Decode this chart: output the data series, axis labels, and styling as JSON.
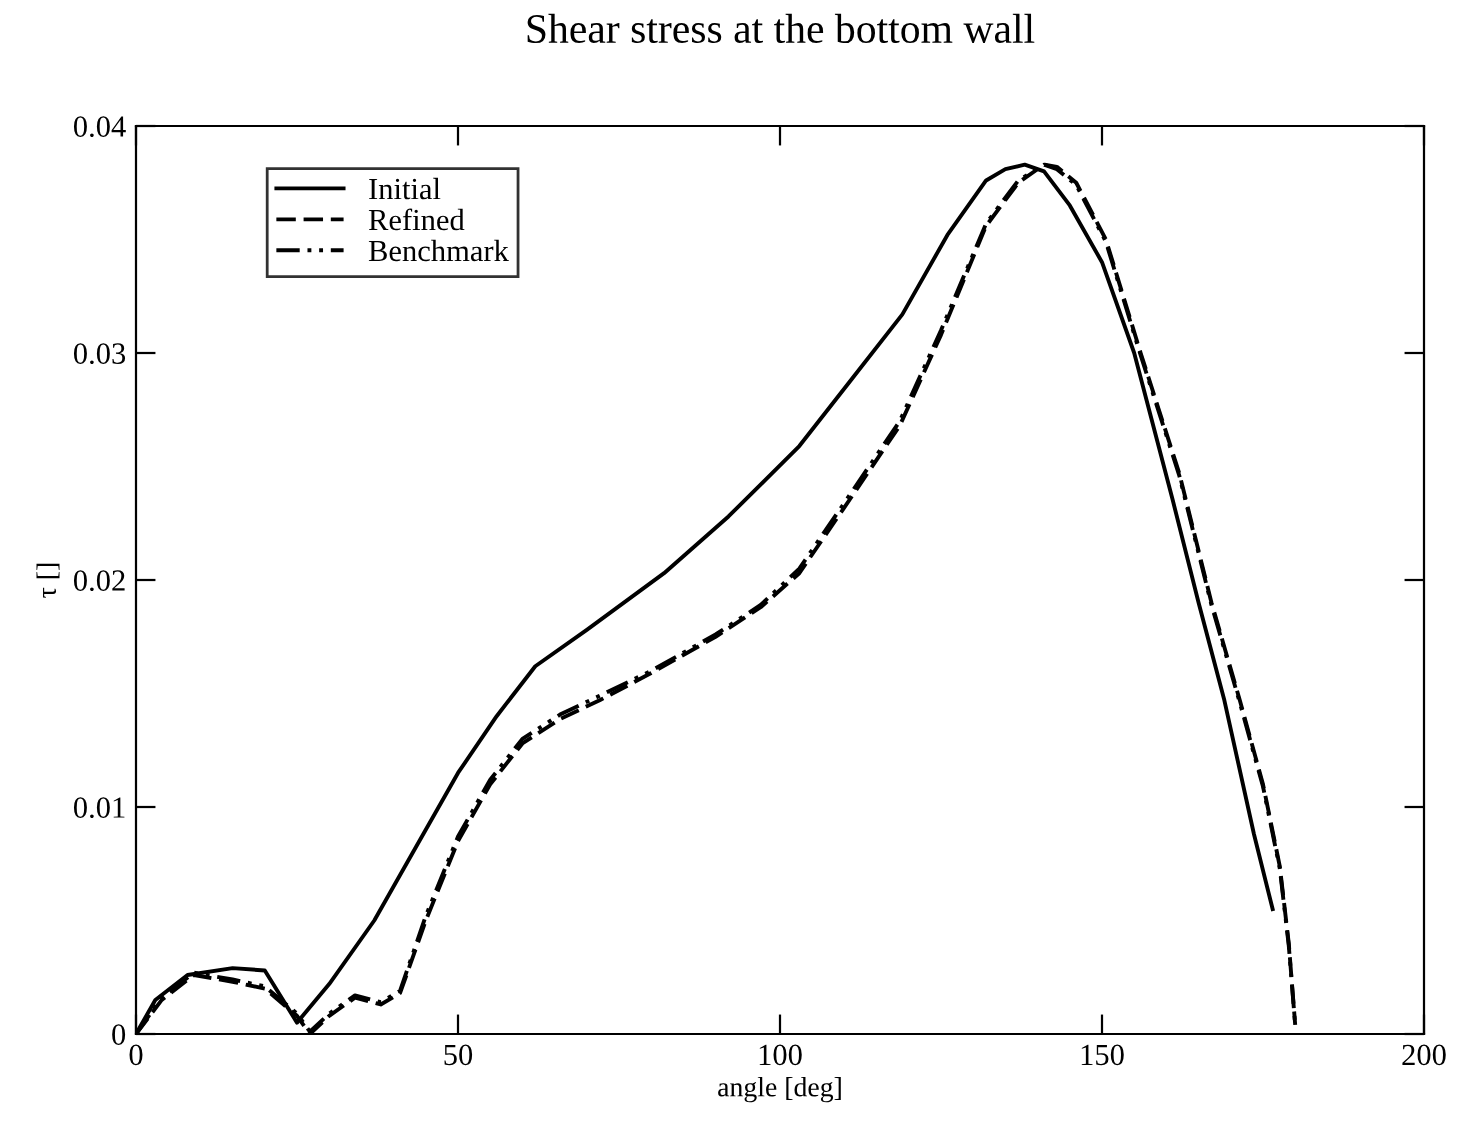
{
  "chart_data": {
    "type": "line",
    "title": "Shear stress at the bottom wall",
    "xlabel": "angle [deg]",
    "ylabel": "τ []",
    "xlim": [
      0,
      200
    ],
    "xticks": [
      0,
      50,
      100,
      150,
      200
    ],
    "ylim": [
      0,
      0.04
    ],
    "yticks": [
      0,
      0.01,
      0.02,
      0.03,
      0.04
    ],
    "grid": false,
    "legend": "top left",
    "marker": "none",
    "series": [
      {
        "name": "Initial",
        "color": "#000000",
        "line_style": "solid",
        "x": [
          0,
          3,
          8,
          15,
          20,
          25,
          30,
          37,
          44,
          50,
          56,
          62,
          70,
          82,
          92,
          103,
          111,
          119,
          126,
          132,
          135,
          138,
          141,
          145,
          150,
          155,
          161,
          165,
          169,
          173.6,
          176.5
        ],
        "values": [
          0,
          0.0015,
          0.0026,
          0.0029,
          0.0028,
          0.0005,
          0.0022,
          0.005,
          0.0085,
          0.0115,
          0.014,
          0.0162,
          0.0178,
          0.0203,
          0.0228,
          0.0259,
          0.0288,
          0.0317,
          0.0352,
          0.0376,
          0.0381,
          0.0383,
          0.038,
          0.0365,
          0.034,
          0.03,
          0.0235,
          0.019,
          0.0147,
          0.0088,
          0.0055
        ]
      },
      {
        "name": "Refined",
        "color": "#000000",
        "line_style": "dashed",
        "x": [
          0,
          4,
          9,
          15,
          20,
          25,
          27,
          30,
          34,
          38,
          41,
          45,
          50,
          55,
          60,
          66,
          72,
          80,
          90,
          97,
          103,
          110,
          118.6,
          125,
          132,
          137,
          141,
          143,
          146,
          150.6,
          156,
          162,
          167,
          171.4,
          175,
          177.6,
          179,
          180
        ],
        "values": [
          0,
          0.0015,
          0.0026,
          0.0023,
          0.002,
          0.0008,
          0.0,
          0.0008,
          0.0016,
          0.0013,
          0.0018,
          0.005,
          0.0085,
          0.011,
          0.0128,
          0.0139,
          0.0147,
          0.0159,
          0.0175,
          0.0188,
          0.0203,
          0.0232,
          0.0268,
          0.0308,
          0.0356,
          0.0375,
          0.0383,
          0.0382,
          0.0375,
          0.035,
          0.03,
          0.0247,
          0.019,
          0.0147,
          0.011,
          0.0074,
          0.004,
          0.0004
        ]
      },
      {
        "name": "Benchmark",
        "color": "#000000",
        "line_style": "dashdot",
        "x": [
          0,
          4,
          9,
          15,
          20,
          25,
          27,
          30,
          34,
          38,
          41,
          45,
          50,
          55,
          60,
          66,
          72,
          80,
          90,
          97,
          103,
          110,
          118.6,
          125,
          132,
          137,
          141,
          143,
          146,
          150.6,
          156,
          162,
          167,
          171.4,
          175,
          177.6,
          179,
          180
        ],
        "values": [
          0,
          0.0016,
          0.0027,
          0.0024,
          0.0021,
          0.0009,
          0.0001,
          0.0009,
          0.0017,
          0.0014,
          0.0019,
          0.0052,
          0.0087,
          0.0112,
          0.013,
          0.0141,
          0.0149,
          0.016,
          0.0176,
          0.0189,
          0.0205,
          0.0234,
          0.027,
          0.031,
          0.0357,
          0.0376,
          0.0383,
          0.0381,
          0.0374,
          0.0349,
          0.0299,
          0.0246,
          0.0189,
          0.0146,
          0.0109,
          0.0073,
          0.0039,
          0.0004
        ]
      }
    ]
  }
}
